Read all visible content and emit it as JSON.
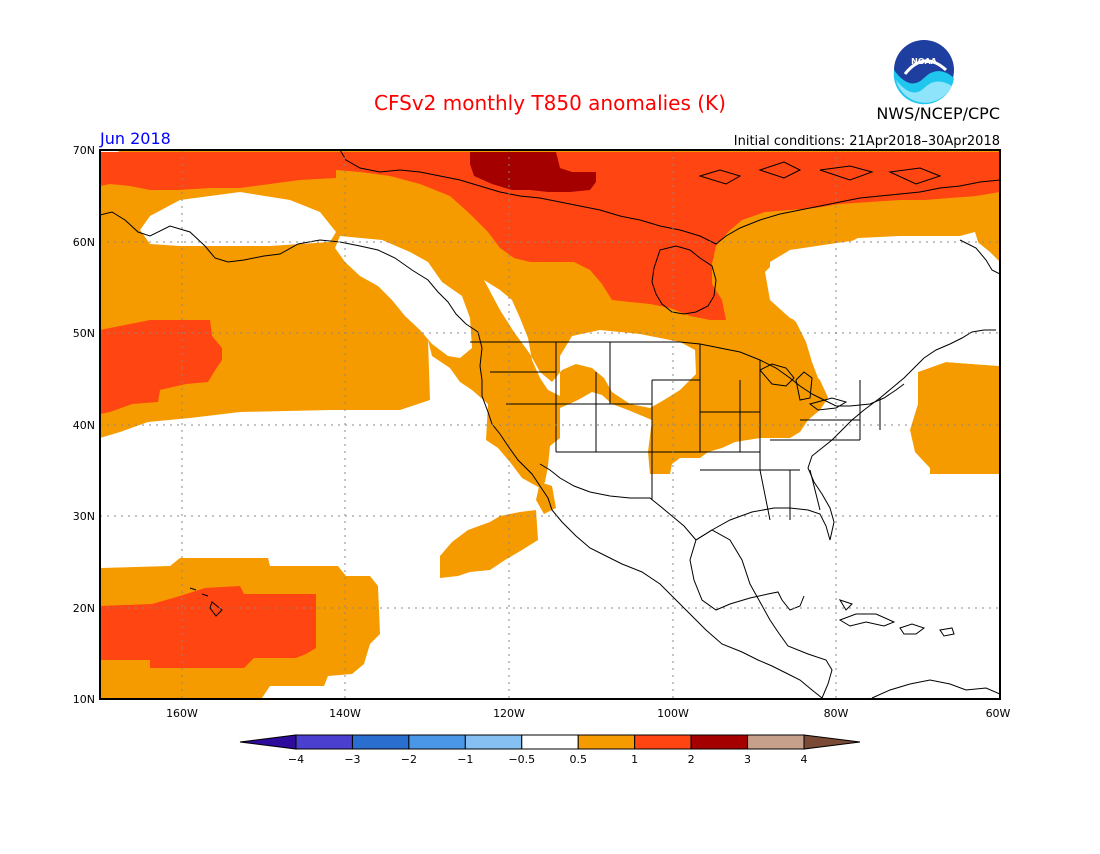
{
  "title": "CFSv2 monthly T850 anomalies (K)",
  "agency": "NWS/NCEP/CPC",
  "logo_text": "NOAA",
  "valid_month": "Jun 2018",
  "initial_conditions": "Initial conditions: 21Apr2018–30Apr2018",
  "lat_labels": [
    "70N",
    "60N",
    "50N",
    "40N",
    "30N",
    "20N",
    "10N"
  ],
  "lon_labels": [
    "160W",
    "140W",
    "120W",
    "100W",
    "80W",
    "60W"
  ],
  "colorbar": {
    "labels": [
      "−4",
      "−3",
      "−2",
      "−1",
      "−0.5",
      "0.5",
      "1",
      "2",
      "3",
      "4"
    ],
    "colors": [
      "#2d0c9c",
      "#4b3fd0",
      "#2a6fcf",
      "#4a97e8",
      "#86c0f2",
      "#ffffff",
      "#f59b00",
      "#ff4512",
      "#a50000",
      "#c7a08c",
      "#7a4a36"
    ]
  },
  "colors": {
    "title": "#ff0000",
    "month_label": "#0000ff",
    "anomaly_0_5_to_1": "#f59b00",
    "anomaly_1_to_2": "#ff4512",
    "anomaly_2_to_3": "#a50000"
  }
}
